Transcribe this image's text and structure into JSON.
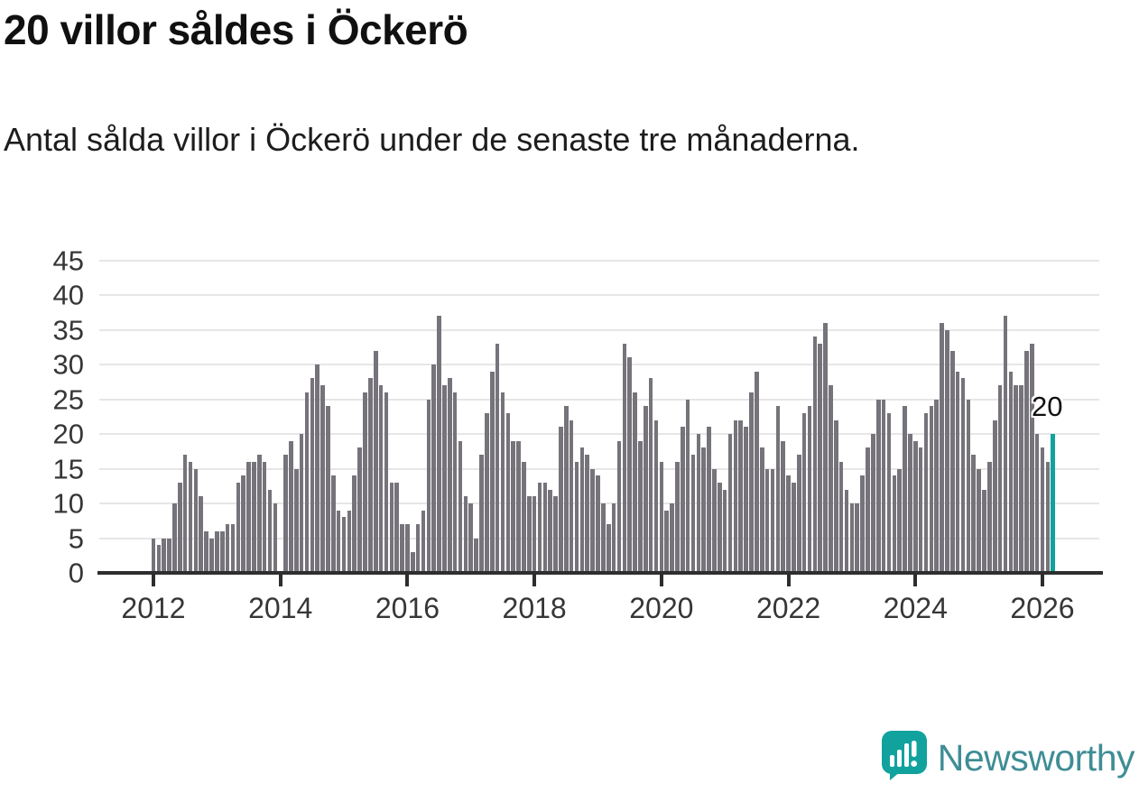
{
  "header": {
    "title": "20 villor såldes i Öckerö",
    "subtitle": "Antal sålda villor i Öckerö under de senaste tre månaderna."
  },
  "annotation": {
    "label": "20"
  },
  "footer": {
    "brand": "Newsworthy"
  },
  "chart_data": {
    "type": "bar",
    "title": "20 villor såldes i Öckerö",
    "subtitle": "Antal sålda villor i Öckerö under de senaste tre månaderna.",
    "start_month": "2012-01",
    "end_month": "2026-03",
    "missing_months": [
      "2014-01"
    ],
    "ylim": [
      0,
      45
    ],
    "y_ticks": [
      0,
      5,
      10,
      15,
      20,
      25,
      30,
      35,
      40,
      45
    ],
    "x_tick_labels": [
      "2012",
      "2014",
      "2016",
      "2018",
      "2020",
      "2022",
      "2024",
      "2026"
    ],
    "grid": "horizontal",
    "legend": "none",
    "bar_color": "#76737a",
    "highlight_color": "#11a29e",
    "highlight": {
      "month": "2026-03",
      "value": 20,
      "label": "20"
    },
    "series": [
      {
        "name": "Antal sålda villor, rullande tre månader",
        "values": [
          5,
          4,
          5,
          5,
          10,
          13,
          17,
          16,
          15,
          11,
          6,
          5,
          6,
          6,
          7,
          7,
          13,
          14,
          16,
          16,
          17,
          16,
          12,
          10,
          null,
          17,
          19,
          15,
          20,
          26,
          28,
          30,
          27,
          24,
          14,
          9,
          8,
          9,
          14,
          18,
          26,
          28,
          32,
          27,
          26,
          13,
          13,
          7,
          7,
          3,
          7,
          9,
          25,
          30,
          37,
          27,
          28,
          26,
          19,
          11,
          10,
          5,
          17,
          23,
          29,
          33,
          26,
          23,
          19,
          19,
          16,
          11,
          11,
          13,
          13,
          12,
          11,
          21,
          24,
          22,
          16,
          18,
          17,
          15,
          14,
          10,
          7,
          10,
          19,
          33,
          31,
          26,
          19,
          24,
          28,
          22,
          16,
          9,
          10,
          16,
          21,
          25,
          17,
          20,
          18,
          21,
          15,
          13,
          12,
          20,
          22,
          22,
          21,
          26,
          29,
          18,
          15,
          15,
          24,
          19,
          14,
          13,
          17,
          23,
          24,
          34,
          33,
          36,
          27,
          22,
          16,
          12,
          10,
          10,
          14,
          18,
          20,
          25,
          25,
          23,
          14,
          15,
          24,
          20,
          19,
          18,
          23,
          24,
          25,
          36,
          35,
          32,
          29,
          28,
          25,
          17,
          15,
          12,
          16,
          22,
          27,
          37,
          29,
          27,
          27,
          32,
          33,
          20,
          18,
          16,
          20
        ]
      }
    ]
  }
}
